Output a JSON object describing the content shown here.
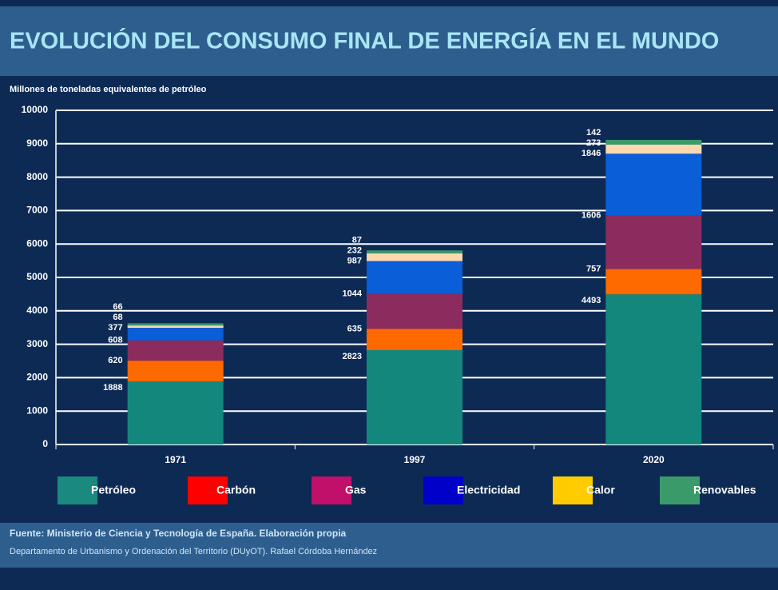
{
  "chart_data": {
    "type": "stacked_bar",
    "title": "EVOLUCIÓN DEL CONSUMO FINAL DE ENERGÍA EN EL MUNDO",
    "y_label": "Millones de toneladas equivalentes de petróleo",
    "categories": [
      "1971",
      "1997",
      "2020"
    ],
    "series": [
      {
        "name": "Petróleo",
        "color": "#14877d",
        "legend_color": "#1a8a80",
        "values": [
          1888,
          2823,
          4493
        ]
      },
      {
        "name": "Carbón",
        "color": "#ff6a00",
        "legend_color": "#ff0000",
        "values": [
          620,
          635,
          757
        ]
      },
      {
        "name": "Gas",
        "color": "#8c2c5e",
        "legend_color": "#c0106a",
        "values": [
          608,
          1044,
          1606
        ]
      },
      {
        "name": "Electricidad",
        "color": "#0a5ed8",
        "legend_color": "#0000c8",
        "values": [
          377,
          987,
          1846
        ]
      },
      {
        "name": "Calor",
        "color": "#ffd8b0",
        "legend_color": "#ffcc00",
        "values": [
          68,
          232,
          273
        ]
      },
      {
        "name": "Renovables",
        "color": "#3a9a6a",
        "legend_color": "#3a9a6a",
        "values": [
          66,
          87,
          142
        ]
      }
    ],
    "ylim": [
      0,
      10000
    ],
    "yticks": [
      0,
      1000,
      2000,
      3000,
      4000,
      5000,
      6000,
      7000,
      8000,
      9000,
      10000
    ],
    "grid": true,
    "legend": "bottom",
    "source": "Fuente: Ministerio de Ciencia y Tecnología de España.  Elaboración propia",
    "credit": "Departamento de Urbanismo y Ordenación del Territorio (DUyOT). Rafael Córdoba Hernández"
  }
}
